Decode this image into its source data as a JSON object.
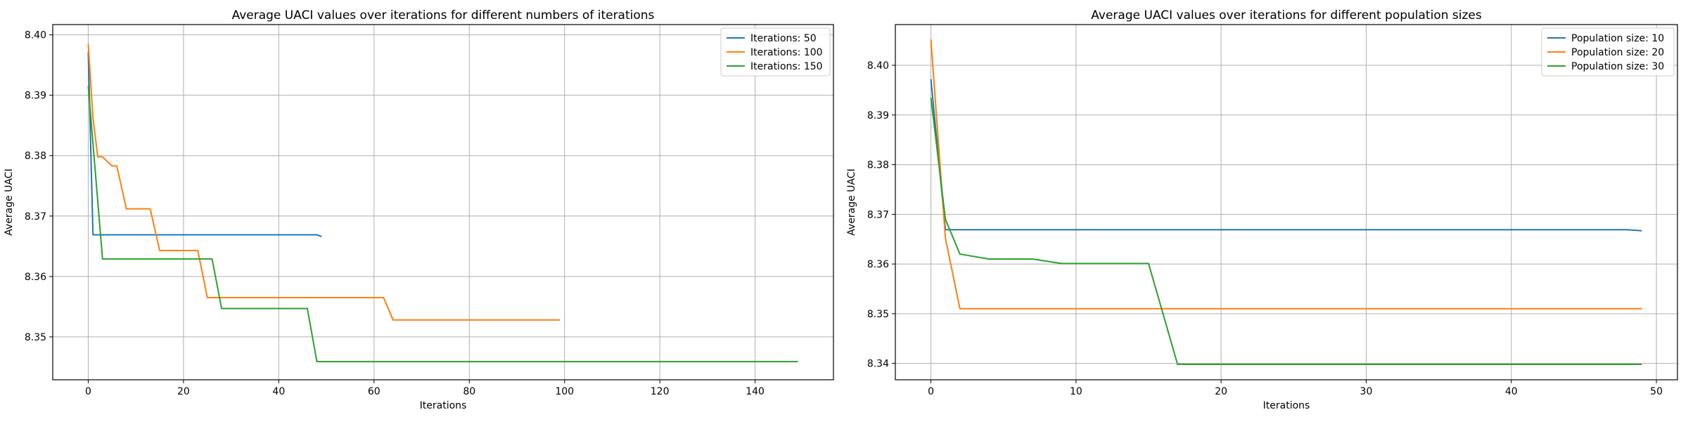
{
  "chart_data": [
    {
      "type": "line",
      "title": "Average UACI values over iterations for different numbers of iterations",
      "xlabel": "Iterations",
      "ylabel": "Average UACI",
      "xlim": [
        -7.45,
        156.45
      ],
      "ylim": [
        8.3429,
        8.4017
      ],
      "xticks": [
        0,
        20,
        40,
        60,
        80,
        100,
        120,
        140
      ],
      "yticks": [
        8.35,
        8.36,
        8.37,
        8.38,
        8.39,
        8.4
      ],
      "tick_decimals": 2,
      "grid": true,
      "legend": "top-right",
      "series": [
        {
          "name": "Iterations: 50",
          "color": "#1f77b4",
          "x": [
            0,
            1,
            2,
            47,
            48,
            49
          ],
          "y": [
            8.3972,
            8.3669,
            8.3669,
            8.3669,
            8.3669,
            8.3666
          ]
        },
        {
          "name": "Iterations: 100",
          "color": "#ff7f0e",
          "x": [
            0,
            1,
            2,
            3,
            5,
            6,
            8,
            13,
            15,
            23,
            25,
            62,
            64,
            99
          ],
          "y": [
            8.3985,
            8.3862,
            8.3798,
            8.3798,
            8.3783,
            8.3783,
            8.3712,
            8.3712,
            8.3643,
            8.3643,
            8.3565,
            8.3565,
            8.3528,
            8.3528
          ]
        },
        {
          "name": "Iterations: 150",
          "color": "#2ca02c",
          "x": [
            0,
            3,
            26,
            28,
            46,
            48,
            149
          ],
          "y": [
            8.3915,
            8.3629,
            8.3629,
            8.3547,
            8.3547,
            8.3459,
            8.3459
          ]
        }
      ]
    },
    {
      "type": "line",
      "title": "Average UACI values over iterations for different population sizes",
      "xlabel": "Iterations",
      "ylabel": "Average UACI",
      "xlim": [
        -2.45,
        51.45
      ],
      "ylim": [
        8.3367,
        8.4082
      ],
      "xticks": [
        0,
        10,
        20,
        30,
        40,
        50
      ],
      "yticks": [
        8.34,
        8.35,
        8.36,
        8.37,
        8.38,
        8.39,
        8.4
      ],
      "tick_decimals": 2,
      "grid": true,
      "legend": "top-right",
      "series": [
        {
          "name": "Population size: 10",
          "color": "#1f77b4",
          "x": [
            0,
            1,
            48,
            49
          ],
          "y": [
            8.3972,
            8.3669,
            8.3669,
            8.3667
          ]
        },
        {
          "name": "Population size: 20",
          "color": "#ff7f0e",
          "x": [
            0,
            1,
            2,
            49
          ],
          "y": [
            8.4052,
            8.3652,
            8.351,
            8.351
          ]
        },
        {
          "name": "Population size: 30",
          "color": "#2ca02c",
          "x": [
            0,
            1,
            2,
            4,
            7,
            9,
            15,
            17,
            49
          ],
          "y": [
            8.3935,
            8.369,
            8.362,
            8.361,
            8.361,
            8.3601,
            8.3601,
            8.3398,
            8.3398
          ]
        }
      ]
    }
  ]
}
